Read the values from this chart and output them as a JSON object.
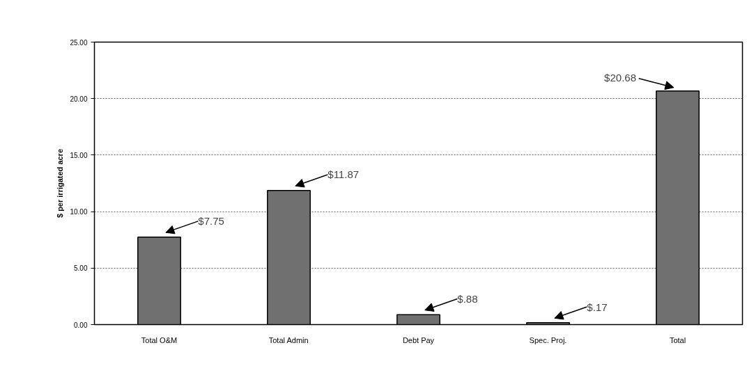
{
  "chart_data": {
    "type": "bar",
    "ylabel": "$ per irrigated acre",
    "categories": [
      "Total O&M",
      "Total Admin",
      "Debt Pay",
      "Spec. Proj.",
      "Total"
    ],
    "values": [
      7.75,
      11.87,
      0.88,
      0.17,
      20.68
    ],
    "value_labels": [
      "$7.75",
      "$11.87",
      "$.88",
      "$.17",
      "$20.68"
    ],
    "color": "#707070",
    "ylim": [
      0,
      25
    ],
    "yticks": [
      {
        "value": 0,
        "label": "0.00"
      },
      {
        "value": 5,
        "label": "5.00"
      },
      {
        "value": 10,
        "label": "10.00"
      },
      {
        "value": 15,
        "label": "15.00"
      },
      {
        "value": 20,
        "label": "20.00"
      },
      {
        "value": 25,
        "label": "25.00"
      }
    ],
    "grid": "y"
  }
}
